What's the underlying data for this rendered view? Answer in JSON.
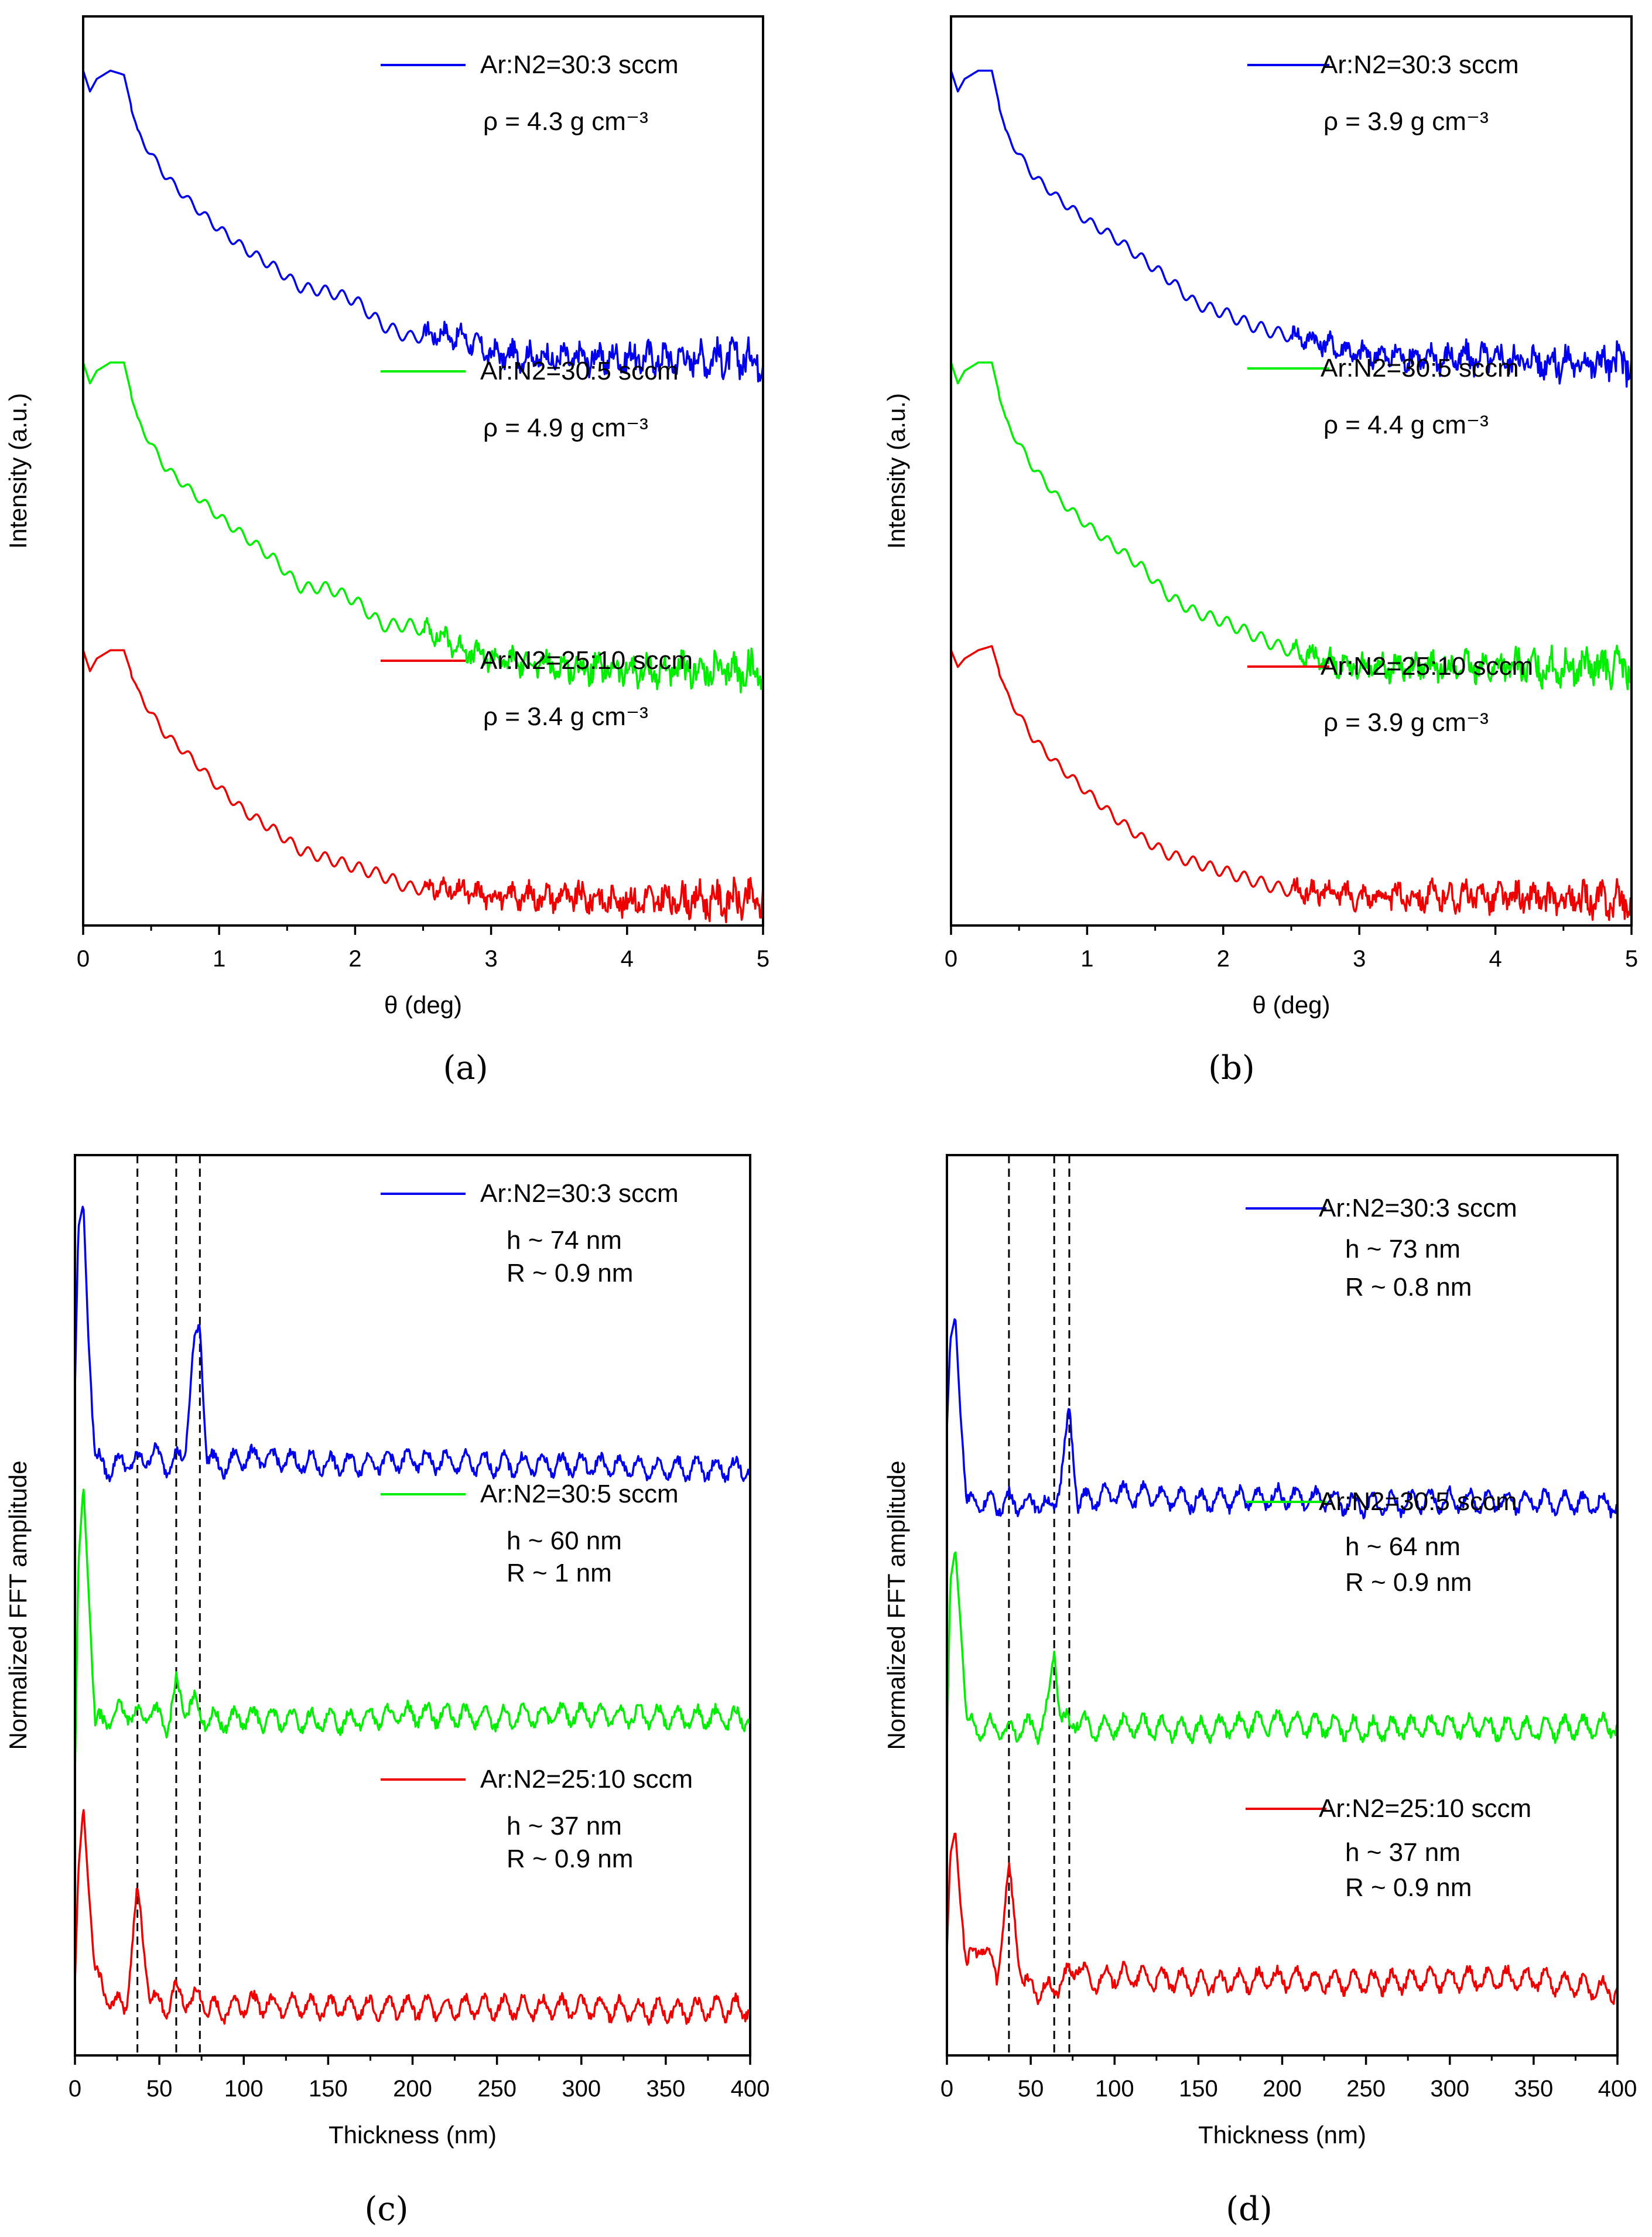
{
  "colors": {
    "blue": "#0000ee",
    "green": "#00ee00",
    "red": "#ee0000",
    "axis": "#000000"
  },
  "chart_data": [
    {
      "type": "line",
      "panel": "(a)",
      "xlabel": "θ (deg)",
      "ylabel": "Intensity (a.u.)",
      "xlim": [
        0,
        5
      ],
      "xticks": [
        "0",
        "1",
        "2",
        "3",
        "4",
        "5"
      ],
      "yticks": [],
      "y_scale": "log, curves vertically offset",
      "x": [
        0,
        0.05,
        0.1,
        0.2,
        0.3,
        0.4,
        0.6,
        0.8,
        1.0,
        1.2,
        1.4,
        1.6,
        1.8,
        2.0,
        2.2,
        2.4,
        2.6,
        2.8,
        3.0,
        3.5,
        4.0,
        4.5,
        5.0
      ],
      "series": [
        {
          "name": "Ar:N2=30:3 sccm",
          "color": "blue",
          "density_label": "ρ = 4.3 g cm⁻³",
          "values": [
            9.95,
            9.7,
            9.85,
            9.95,
            9.9,
            9.2,
            8.7,
            8.35,
            8.05,
            7.8,
            7.6,
            7.35,
            7.3,
            7.2,
            6.9,
            6.75,
            6.8,
            6.75,
            6.55,
            6.5,
            6.5,
            6.5,
            6.5
          ]
        },
        {
          "name": "Ar:N2=30:5 sccm",
          "color": "green",
          "density_label": "ρ = 4.9 g cm⁻³",
          "values": [
            6.45,
            6.2,
            6.35,
            6.45,
            6.45,
            5.75,
            5.2,
            4.9,
            4.6,
            4.35,
            4.1,
            3.75,
            3.75,
            3.6,
            3.3,
            3.3,
            3.2,
            3.0,
            2.9,
            2.8,
            2.75,
            2.75,
            2.75
          ]
        },
        {
          "name": "Ar:N2=25:10 sccm",
          "color": "red",
          "density_label": "ρ = 3.4 g cm⁻³",
          "values": [
            3.0,
            2.75,
            2.9,
            3.0,
            3.0,
            2.5,
            2.0,
            1.7,
            1.35,
            1.05,
            0.85,
            0.6,
            0.5,
            0.4,
            0.3,
            0.15,
            0.15,
            0.1,
            0.05,
            0.05,
            0.0,
            0.0,
            0.0
          ]
        }
      ]
    },
    {
      "type": "line",
      "panel": "(b)",
      "xlabel": "θ (deg)",
      "ylabel": "Intensity (a.u.)",
      "xlim": [
        0,
        5
      ],
      "xticks": [
        "0",
        "1",
        "2",
        "3",
        "4",
        "5"
      ],
      "yticks": [],
      "y_scale": "log, curves vertically offset",
      "x": [
        0,
        0.05,
        0.1,
        0.2,
        0.3,
        0.4,
        0.6,
        0.8,
        1.0,
        1.2,
        1.4,
        1.6,
        1.8,
        2.0,
        2.2,
        2.4,
        2.6,
        2.8,
        3.0,
        3.5,
        4.0,
        4.5,
        5.0
      ],
      "series": [
        {
          "name": "Ar:N2=30:3 sccm",
          "color": "blue",
          "density_label": "ρ = 3.9 g cm⁻³",
          "values": [
            9.95,
            9.7,
            9.85,
            9.95,
            9.95,
            9.2,
            8.7,
            8.4,
            8.15,
            7.95,
            7.7,
            7.45,
            7.15,
            7.05,
            6.9,
            6.8,
            6.75,
            6.65,
            6.55,
            6.5,
            6.5,
            6.45,
            6.45
          ]
        },
        {
          "name": "Ar:N2=30:5 sccm",
          "color": "green",
          "density_label": "ρ = 4.4 g cm⁻³",
          "values": [
            6.45,
            6.2,
            6.35,
            6.45,
            6.45,
            5.75,
            5.2,
            4.8,
            4.5,
            4.25,
            4.0,
            3.65,
            3.45,
            3.35,
            3.2,
            3.05,
            2.95,
            2.85,
            2.8,
            2.8,
            2.8,
            2.8,
            2.8
          ]
        },
        {
          "name": "Ar:N2=25:10 sccm",
          "color": "red",
          "density_label": "ρ = 3.9 g cm⁻³",
          "values": [
            3.0,
            2.8,
            2.9,
            3.0,
            3.05,
            2.5,
            1.95,
            1.6,
            1.3,
            1.0,
            0.75,
            0.55,
            0.45,
            0.35,
            0.25,
            0.15,
            0.1,
            0.1,
            0.05,
            0.05,
            0.05,
            0.0,
            0.0
          ]
        }
      ]
    },
    {
      "type": "line",
      "panel": "(c)",
      "xlabel": "Thickness (nm)",
      "ylabel": "Normalized FFT amplitude",
      "xlim": [
        0,
        400
      ],
      "xticks": [
        "0",
        "50",
        "100",
        "150",
        "200",
        "250",
        "300",
        "350",
        "400"
      ],
      "yticks": [],
      "reference_lines_x": [
        37,
        60,
        74
      ],
      "x": [
        0,
        2,
        5,
        8,
        12,
        20,
        30,
        37,
        45,
        55,
        60,
        65,
        70,
        74,
        78,
        85,
        100,
        150,
        200,
        250,
        300,
        350,
        400
      ],
      "series": [
        {
          "name": "Ar:N2=30:3 sccm",
          "color": "blue",
          "thickness_label": "h ~ 74 nm",
          "roughness_label": "R ~ 0.9 nm",
          "values": [
            8.0,
            10.0,
            10.3,
            8.6,
            7.1,
            7.0,
            7.1,
            7.05,
            7.2,
            7.05,
            7.1,
            7.2,
            8.4,
            8.8,
            7.2,
            7.0,
            7.15,
            7.05,
            7.1,
            7.05,
            7.05,
            7.0,
            7.0
          ]
        },
        {
          "name": "Ar:N2=30:5 sccm",
          "color": "green",
          "thickness_label": "h ~ 60 nm",
          "roughness_label": "R ~ 1 nm",
          "values": [
            3.2,
            5.8,
            6.8,
            5.5,
            3.8,
            3.9,
            4.0,
            3.9,
            4.0,
            3.8,
            4.3,
            4.0,
            4.1,
            3.95,
            3.9,
            3.85,
            3.9,
            3.85,
            3.95,
            3.9,
            3.95,
            3.9,
            3.9
          ]
        },
        {
          "name": "Ar:N2=25:10 sccm",
          "color": "red",
          "thickness_label": "h ~ 37 nm",
          "roughness_label": "R ~ 0.9 nm",
          "values": [
            0.6,
            2.0,
            2.8,
            1.8,
            0.7,
            0.4,
            0.3,
            1.7,
            0.4,
            0.3,
            0.5,
            0.4,
            0.35,
            0.45,
            0.3,
            0.25,
            0.35,
            0.3,
            0.3,
            0.3,
            0.3,
            0.25,
            0.3
          ]
        }
      ]
    },
    {
      "type": "line",
      "panel": "(d)",
      "xlabel": "Thickness (nm)",
      "ylabel": "Normalized FFT amplitude",
      "xlim": [
        0,
        400
      ],
      "xticks": [
        "0",
        "50",
        "100",
        "150",
        "200",
        "250",
        "300",
        "350",
        "400"
      ],
      "yticks": [],
      "reference_lines_x": [
        37,
        64,
        73
      ],
      "x": [
        0,
        2,
        5,
        8,
        12,
        20,
        30,
        37,
        45,
        55,
        60,
        64,
        68,
        73,
        78,
        85,
        100,
        150,
        200,
        250,
        300,
        350,
        400
      ],
      "series": [
        {
          "name": "Ar:N2=30:3 sccm",
          "color": "blue",
          "thickness_label": "h ~ 73 nm",
          "roughness_label": "R ~ 0.8 nm",
          "values": [
            7.5,
            8.6,
            8.9,
            7.7,
            6.55,
            6.6,
            6.55,
            6.6,
            6.55,
            6.6,
            6.5,
            6.55,
            6.9,
            7.7,
            6.6,
            6.6,
            6.7,
            6.6,
            6.65,
            6.55,
            6.6,
            6.6,
            6.55
          ]
        },
        {
          "name": "Ar:N2=30:5 sccm",
          "color": "green",
          "thickness_label": "h ~ 64 nm",
          "roughness_label": "R ~ 0.9 nm",
          "values": [
            3.5,
            5.6,
            6.0,
            5.1,
            3.8,
            3.75,
            3.8,
            3.7,
            3.8,
            3.75,
            4.0,
            4.8,
            3.9,
            3.8,
            3.9,
            3.75,
            3.8,
            3.75,
            3.85,
            3.75,
            3.8,
            3.75,
            3.8
          ]
        },
        {
          "name": "Ar:N2=25:10 sccm",
          "color": "red",
          "thickness_label": "h ~ 37 nm",
          "roughness_label": "R ~ 0.9 nm",
          "values": [
            1.0,
            2.2,
            2.5,
            1.6,
            0.8,
            1.1,
            0.7,
            2.0,
            0.6,
            0.5,
            0.5,
            0.55,
            0.6,
            0.7,
            0.85,
            0.6,
            0.7,
            0.6,
            0.65,
            0.6,
            0.65,
            0.65,
            0.5
          ]
        }
      ]
    }
  ]
}
